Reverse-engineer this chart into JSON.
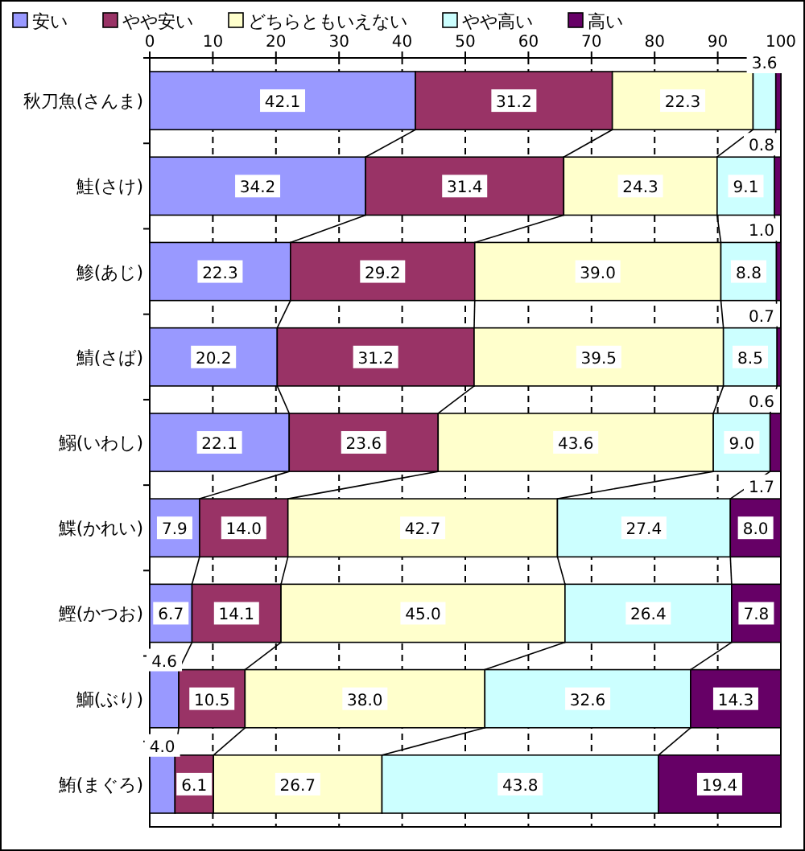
{
  "chart_data": {
    "type": "bar",
    "orientation": "horizontal",
    "stacked": true,
    "categories": [
      "秋刀魚(さんま)",
      "鮭(さけ)",
      "鯵(あじ)",
      "鯖(さば)",
      "鰯(いわし)",
      "鰈(かれい)",
      "鰹(かつお)",
      "鰤(ぶり)",
      "鮪(まぐろ)"
    ],
    "series": [
      {
        "name": "安い",
        "color": "#9999ff",
        "values": [
          42.1,
          34.2,
          22.3,
          20.2,
          22.1,
          7.9,
          6.7,
          4.6,
          4.0
        ],
        "value_labels": [
          "42.1",
          "34.2",
          "22.3",
          "20.2",
          "22.1",
          "7.9",
          "6.7",
          "4.6",
          "4.0"
        ]
      },
      {
        "name": "やや安い",
        "color": "#993366",
        "values": [
          31.2,
          31.4,
          29.2,
          31.2,
          23.6,
          14.0,
          14.1,
          10.5,
          6.1
        ],
        "value_labels": [
          "31.2",
          "31.4",
          "29.2",
          "31.2",
          "23.6",
          "14.0",
          "14.1",
          "10.5",
          "6.1"
        ]
      },
      {
        "name": "どちらともいえない",
        "color": "#ffffcc",
        "values": [
          22.3,
          24.3,
          39.0,
          39.5,
          43.6,
          42.7,
          45.0,
          38.0,
          26.7
        ],
        "value_labels": [
          "22.3",
          "24.3",
          "39.0",
          "39.5",
          "43.6",
          "42.7",
          "45.0",
          "38.0",
          "26.7"
        ]
      },
      {
        "name": "やや高い",
        "color": "#ccffff",
        "values": [
          3.6,
          9.1,
          8.8,
          8.5,
          9.0,
          27.4,
          26.4,
          32.6,
          43.8
        ],
        "value_labels": [
          "3.6",
          "9.1",
          "8.8",
          "8.5",
          "9.0",
          "27.4",
          "26.4",
          "32.6",
          "43.8"
        ]
      },
      {
        "name": "高い",
        "color": "#660066",
        "values": [
          0.8,
          1.0,
          0.7,
          0.6,
          1.7,
          8.0,
          7.8,
          14.3,
          19.4
        ],
        "value_labels": [
          "0.8",
          "1.0",
          "0.7",
          "0.6",
          "1.7",
          "8.0",
          "7.8",
          "14.3",
          "19.4"
        ]
      }
    ],
    "xlim": [
      0,
      100
    ],
    "xticks": [
      0,
      10,
      20,
      30,
      40,
      50,
      60,
      70,
      80,
      90,
      100
    ],
    "grid": "x",
    "legend": "top"
  }
}
